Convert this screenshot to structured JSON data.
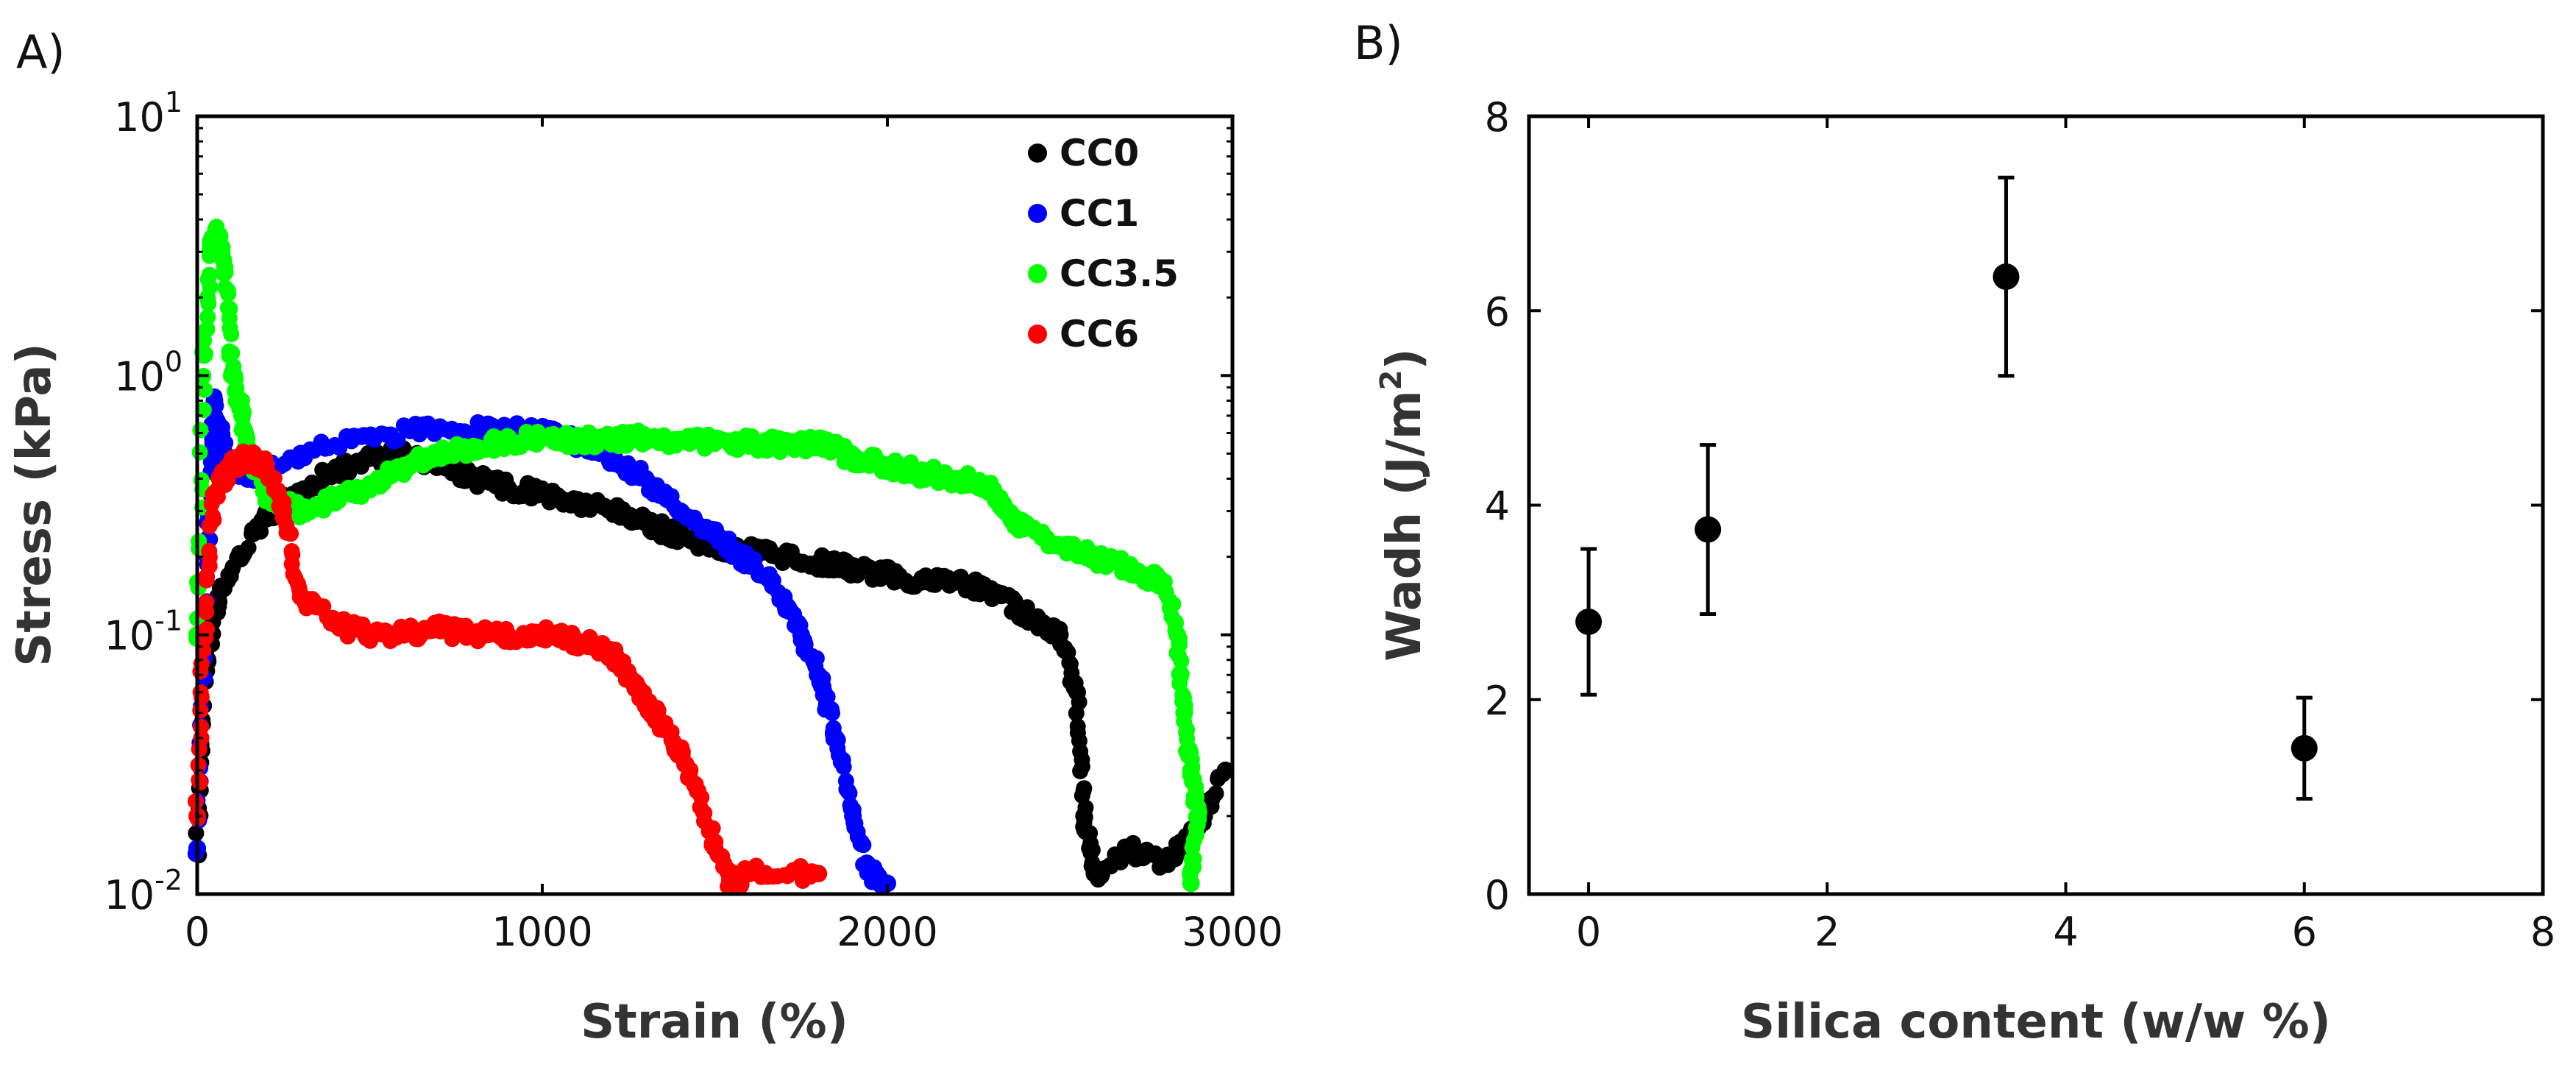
{
  "chart_data": [
    {
      "panel": "A)",
      "type": "scatter",
      "xlabel": "Strain (%)",
      "ylabel": "Stress (kPa)",
      "xlim": [
        0,
        3000
      ],
      "ylim": [
        0.01,
        10
      ],
      "yscale": "log",
      "x_ticks": [
        0,
        1000,
        2000,
        3000
      ],
      "x_tick_labels": [
        "0",
        "1000",
        "2000",
        "3000"
      ],
      "y_ticks": [
        0.01,
        0.1,
        1,
        10
      ],
      "y_tick_labels": [
        {
          "base": "10",
          "exp": "-2"
        },
        {
          "base": "10",
          "exp": "-1"
        },
        {
          "base": "10",
          "exp": "0"
        },
        {
          "base": "10",
          "exp": "1"
        }
      ],
      "legend_position": "top-right",
      "series": [
        {
          "name": "CC0",
          "color": "#000000",
          "points": [
            [
              0,
              0.015
            ],
            [
              30,
              0.08
            ],
            [
              60,
              0.14
            ],
            [
              120,
              0.2
            ],
            [
              200,
              0.28
            ],
            [
              300,
              0.36
            ],
            [
              400,
              0.43
            ],
            [
              500,
              0.48
            ],
            [
              600,
              0.5
            ],
            [
              700,
              0.45
            ],
            [
              800,
              0.4
            ],
            [
              900,
              0.37
            ],
            [
              1000,
              0.35
            ],
            [
              1100,
              0.32
            ],
            [
              1200,
              0.3
            ],
            [
              1300,
              0.27
            ],
            [
              1400,
              0.24
            ],
            [
              1500,
              0.22
            ],
            [
              1600,
              0.21
            ],
            [
              1700,
              0.2
            ],
            [
              1800,
              0.19
            ],
            [
              1900,
              0.18
            ],
            [
              2000,
              0.17
            ],
            [
              2100,
              0.16
            ],
            [
              2200,
              0.16
            ],
            [
              2300,
              0.15
            ],
            [
              2400,
              0.12
            ],
            [
              2500,
              0.1
            ],
            [
              2550,
              0.06
            ],
            [
              2570,
              0.02
            ],
            [
              2600,
              0.012
            ],
            [
              2700,
              0.015
            ],
            [
              2800,
              0.013
            ],
            [
              2900,
              0.018
            ],
            [
              2980,
              0.03
            ]
          ]
        },
        {
          "name": "CC1",
          "color": "#0000ff",
          "points": [
            [
              0,
              0.015
            ],
            [
              30,
              0.2
            ],
            [
              50,
              0.8
            ],
            [
              80,
              0.5
            ],
            [
              150,
              0.4
            ],
            [
              300,
              0.5
            ],
            [
              500,
              0.58
            ],
            [
              700,
              0.63
            ],
            [
              900,
              0.62
            ],
            [
              1000,
              0.6
            ],
            [
              1100,
              0.55
            ],
            [
              1200,
              0.48
            ],
            [
              1300,
              0.4
            ],
            [
              1400,
              0.3
            ],
            [
              1500,
              0.24
            ],
            [
              1600,
              0.19
            ],
            [
              1700,
              0.14
            ],
            [
              1750,
              0.1
            ],
            [
              1800,
              0.07
            ],
            [
              1850,
              0.04
            ],
            [
              1900,
              0.02
            ],
            [
              1950,
              0.012
            ],
            [
              2000,
              0.011
            ]
          ]
        },
        {
          "name": "CC3.5",
          "color": "#00ff00",
          "points": [
            [
              0,
              0.1
            ],
            [
              20,
              1.2
            ],
            [
              40,
              3.2
            ],
            [
              60,
              3.5
            ],
            [
              80,
              2.5
            ],
            [
              100,
              1.0
            ],
            [
              130,
              0.7
            ],
            [
              150,
              0.5
            ],
            [
              200,
              0.35
            ],
            [
              300,
              0.3
            ],
            [
              400,
              0.33
            ],
            [
              500,
              0.38
            ],
            [
              600,
              0.45
            ],
            [
              700,
              0.5
            ],
            [
              800,
              0.53
            ],
            [
              900,
              0.56
            ],
            [
              1000,
              0.58
            ],
            [
              1100,
              0.56
            ],
            [
              1200,
              0.57
            ],
            [
              1300,
              0.57
            ],
            [
              1400,
              0.56
            ],
            [
              1500,
              0.55
            ],
            [
              1600,
              0.55
            ],
            [
              1700,
              0.54
            ],
            [
              1800,
              0.54
            ],
            [
              1850,
              0.53
            ],
            [
              1900,
              0.48
            ],
            [
              2000,
              0.45
            ],
            [
              2100,
              0.42
            ],
            [
              2200,
              0.4
            ],
            [
              2300,
              0.37
            ],
            [
              2340,
              0.3
            ],
            [
              2400,
              0.26
            ],
            [
              2500,
              0.22
            ],
            [
              2600,
              0.2
            ],
            [
              2700,
              0.18
            ],
            [
              2800,
              0.16
            ],
            [
              2840,
              0.1
            ],
            [
              2860,
              0.05
            ],
            [
              2880,
              0.03
            ],
            [
              2900,
              0.02
            ],
            [
              2880,
              0.011
            ]
          ]
        },
        {
          "name": "CC6",
          "color": "#ff0000",
          "points": [
            [
              0,
              0.02
            ],
            [
              20,
              0.1
            ],
            [
              50,
              0.35
            ],
            [
              100,
              0.45
            ],
            [
              150,
              0.48
            ],
            [
              200,
              0.45
            ],
            [
              250,
              0.3
            ],
            [
              300,
              0.14
            ],
            [
              400,
              0.11
            ],
            [
              500,
              0.1
            ],
            [
              600,
              0.1
            ],
            [
              700,
              0.105
            ],
            [
              800,
              0.1
            ],
            [
              900,
              0.1
            ],
            [
              1000,
              0.1
            ],
            [
              1100,
              0.095
            ],
            [
              1200,
              0.085
            ],
            [
              1250,
              0.07
            ],
            [
              1300,
              0.055
            ],
            [
              1350,
              0.045
            ],
            [
              1400,
              0.035
            ],
            [
              1450,
              0.025
            ],
            [
              1500,
              0.015
            ],
            [
              1550,
              0.011
            ],
            [
              1600,
              0.012
            ],
            [
              1800,
              0.012
            ]
          ]
        }
      ]
    },
    {
      "panel": "B)",
      "type": "scatter",
      "xlabel": "Silica content (w/w %)",
      "ylabel": "Wadh (J/m",
      "ylabel_sup": "2",
      "ylabel_close": ")",
      "xlim": [
        -0.5,
        8
      ],
      "ylim": [
        0,
        8
      ],
      "x_ticks": [
        0,
        2,
        4,
        6,
        8
      ],
      "x_tick_labels": [
        "0",
        "2",
        "4",
        "6",
        "8"
      ],
      "y_ticks": [
        0,
        2,
        4,
        6,
        8
      ],
      "y_tick_labels": [
        "0",
        "2",
        "4",
        "6",
        "8"
      ],
      "series": [
        {
          "name": "Wadh",
          "color": "#000000",
          "x": [
            0,
            1,
            3.5,
            6
          ],
          "y": [
            2.8,
            3.75,
            6.35,
            1.5
          ],
          "yerr": [
            0.75,
            0.87,
            1.02,
            0.52
          ]
        }
      ]
    }
  ]
}
